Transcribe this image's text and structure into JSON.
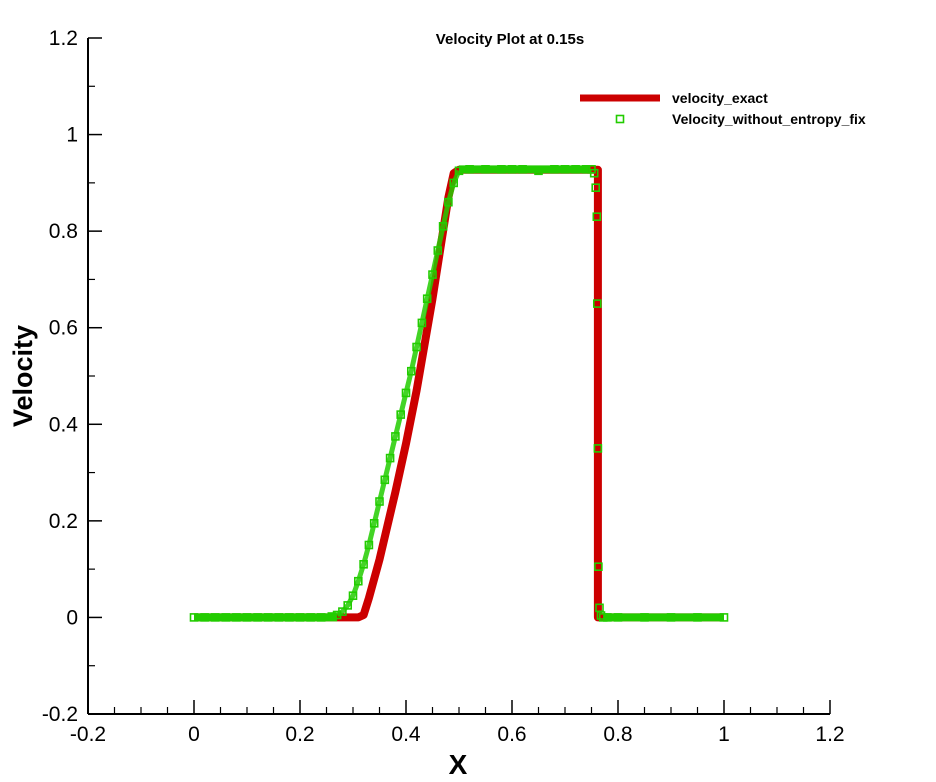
{
  "chart_data": {
    "type": "line",
    "title": "Velocity Plot at 0.15s",
    "xlabel": "X",
    "ylabel": "Velocity",
    "xlim": [
      -0.2,
      1.2
    ],
    "ylim": [
      -0.2,
      1.2
    ],
    "x_ticks": [
      "-0.2",
      "0",
      "0.2",
      "0.4",
      "0.6",
      "0.8",
      "1",
      "1.2"
    ],
    "y_ticks": [
      "-0.2",
      "0",
      "0.2",
      "0.4",
      "0.6",
      "0.8",
      "1",
      "1.2"
    ],
    "grid": false,
    "legend_position": "top-right",
    "series": [
      {
        "name": "velocity_exact",
        "style": "line",
        "color": "#cc0000",
        "x": [
          0,
          0.1,
          0.2,
          0.3,
          0.31,
          0.32,
          0.33,
          0.35,
          0.38,
          0.4,
          0.42,
          0.45,
          0.48,
          0.49,
          0.5,
          0.6,
          0.7,
          0.75,
          0.757,
          0.762,
          0.762,
          0.77,
          0.8,
          0.9,
          1.0
        ],
        "y": [
          0,
          0,
          0,
          0,
          0,
          0.005,
          0.04,
          0.12,
          0.26,
          0.36,
          0.47,
          0.66,
          0.87,
          0.92,
          0.927,
          0.927,
          0.927,
          0.927,
          0.927,
          0.927,
          0,
          0,
          0,
          0,
          0
        ]
      },
      {
        "name": "Velocity_without_entropy_fix",
        "style": "markers",
        "color": "#22cc00",
        "x": [
          0,
          0.02,
          0.04,
          0.06,
          0.08,
          0.1,
          0.12,
          0.14,
          0.16,
          0.18,
          0.2,
          0.22,
          0.24,
          0.26,
          0.27,
          0.28,
          0.29,
          0.3,
          0.31,
          0.32,
          0.33,
          0.34,
          0.35,
          0.36,
          0.37,
          0.38,
          0.39,
          0.4,
          0.41,
          0.42,
          0.43,
          0.44,
          0.45,
          0.46,
          0.47,
          0.48,
          0.49,
          0.5,
          0.52,
          0.55,
          0.58,
          0.6,
          0.62,
          0.65,
          0.68,
          0.7,
          0.72,
          0.74,
          0.75,
          0.755,
          0.758,
          0.76,
          0.761,
          0.762,
          0.763,
          0.765,
          0.768,
          0.772,
          0.78,
          0.8,
          0.85,
          0.9,
          0.95,
          1.0
        ],
        "y": [
          0,
          0,
          0,
          0,
          0,
          0,
          0,
          0,
          0,
          0,
          0,
          0,
          0,
          0.002,
          0.005,
          0.012,
          0.025,
          0.045,
          0.075,
          0.11,
          0.15,
          0.195,
          0.24,
          0.285,
          0.33,
          0.375,
          0.42,
          0.465,
          0.51,
          0.56,
          0.61,
          0.66,
          0.71,
          0.76,
          0.81,
          0.86,
          0.9,
          0.925,
          0.928,
          0.928,
          0.928,
          0.928,
          0.928,
          0.925,
          0.928,
          0.928,
          0.928,
          0.928,
          0.928,
          0.92,
          0.89,
          0.83,
          0.65,
          0.35,
          0.105,
          0.02,
          0.004,
          0,
          0,
          0,
          0,
          0,
          0,
          0
        ]
      }
    ]
  }
}
